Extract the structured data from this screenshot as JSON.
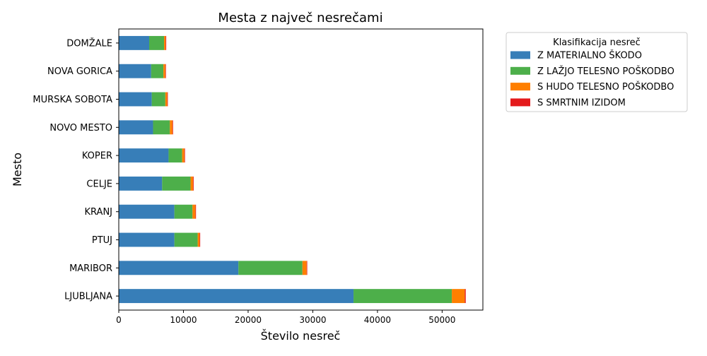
{
  "chart_data": {
    "type": "bar",
    "orientation": "horizontal",
    "stacked": true,
    "title": "Mesta z največ nesrečami",
    "xlabel": "Število nesreč",
    "ylabel": "Mesto",
    "xlim": [
      0,
      56300
    ],
    "xticks": [
      0,
      10000,
      20000,
      30000,
      40000,
      50000
    ],
    "grid": false,
    "legend": {
      "title": "Klasifikacija nesreč",
      "placement": "outside-top-right"
    },
    "categories": [
      "LJUBLJANA",
      "MARIBOR",
      "PTUJ",
      "KRANJ",
      "CELJE",
      "KOPER",
      "NOVO MESTO",
      "MURSKA SOBOTA",
      "NOVA GORICA",
      "DOMŽALE"
    ],
    "series": [
      {
        "name": "Z MATERIALNO ŠKODO",
        "color": "#377eb8",
        "values": [
          36300,
          18500,
          8600,
          8600,
          6700,
          7700,
          5300,
          5100,
          5000,
          4700
        ]
      },
      {
        "name": "Z LAŽJO TELESNO POŠKODBO",
        "color": "#4daf4a",
        "values": [
          15200,
          9900,
          3600,
          2800,
          4400,
          2100,
          2600,
          2100,
          1900,
          2300
        ]
      },
      {
        "name": "S HUDO TELESNO POŠKODBO",
        "color": "#ff7f00",
        "values": [
          2000,
          650,
          300,
          450,
          400,
          350,
          400,
          300,
          300,
          250
        ]
      },
      {
        "name": "S SMRTNIM IZIDOM",
        "color": "#e41a1c",
        "values": [
          150,
          70,
          60,
          80,
          40,
          40,
          40,
          30,
          50,
          40
        ]
      }
    ]
  }
}
